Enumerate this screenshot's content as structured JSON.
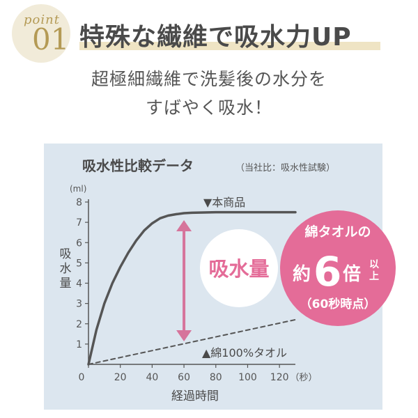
{
  "badge": {
    "word": "point",
    "number": "01"
  },
  "headline": "特殊な繊維で吸水力UP",
  "subtitle_lines": [
    "超極細繊維で洗髪後の水分を",
    "すばやく吸水！"
  ],
  "colors": {
    "accent_pink": "#d6749b",
    "callout_pink": "#e46c98",
    "line": "#555555",
    "panel": "#dce6ef",
    "gold": "#b49a55"
  },
  "chart_data": {
    "type": "line",
    "title": "吸水性比較データ",
    "title_note": "（当社比：吸水性試験）",
    "xlabel": "経過時間",
    "x_unit": "（秒）",
    "ylabel": "吸水量",
    "y_unit": "(ml)",
    "xlim": [
      0,
      130
    ],
    "ylim": [
      0,
      8
    ],
    "xticks": [
      0,
      20,
      40,
      60,
      80,
      100,
      120
    ],
    "yticks": [
      1,
      2,
      3,
      4,
      5,
      6,
      7,
      8
    ],
    "series": [
      {
        "name": "▼本商品",
        "style": "solid",
        "x": [
          0,
          5,
          10,
          15,
          20,
          25,
          30,
          35,
          40,
          45,
          50,
          55,
          60,
          65,
          70,
          80,
          100,
          130
        ],
        "y": [
          0,
          1.7,
          3.0,
          4.0,
          4.8,
          5.5,
          6.1,
          6.6,
          6.95,
          7.2,
          7.33,
          7.4,
          7.45,
          7.47,
          7.48,
          7.5,
          7.5,
          7.5
        ]
      },
      {
        "name": "▲綿100%タオル",
        "style": "dashed",
        "x": [
          0,
          130
        ],
        "y": [
          0,
          2.2
        ]
      }
    ],
    "annotations": {
      "arrow_label": "吸水量",
      "arrow_at_x": 60,
      "callout_line1": "綿タオルの",
      "callout_prefix": "約",
      "callout_number": "6",
      "callout_suffix": "倍",
      "callout_extra": [
        "以",
        "上"
      ],
      "callout_line3": "（60秒時点）"
    }
  }
}
